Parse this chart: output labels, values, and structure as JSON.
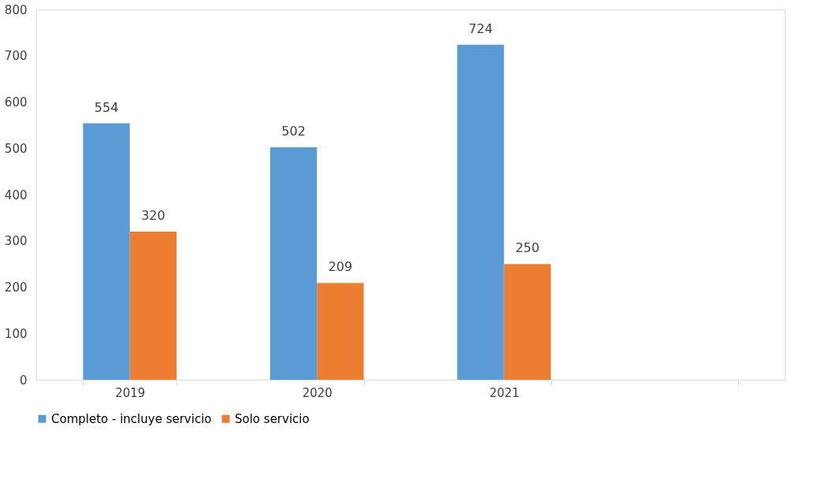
{
  "chart_data": {
    "type": "bar",
    "categories": [
      "2019",
      "2020",
      "2021",
      null
    ],
    "series": [
      {
        "name": "Completo - incluye servicio",
        "color": "#5b9bd5",
        "values": [
          554,
          502,
          724,
          null
        ]
      },
      {
        "name": "Solo servicio",
        "color": "#ed7d31",
        "values": [
          320,
          209,
          250,
          null
        ]
      }
    ],
    "ylim": [
      0,
      800
    ],
    "yticks": [
      0,
      100,
      200,
      300,
      400,
      500,
      600,
      700,
      800
    ],
    "grid": false,
    "legend": "bottom",
    "data_labels": true
  }
}
